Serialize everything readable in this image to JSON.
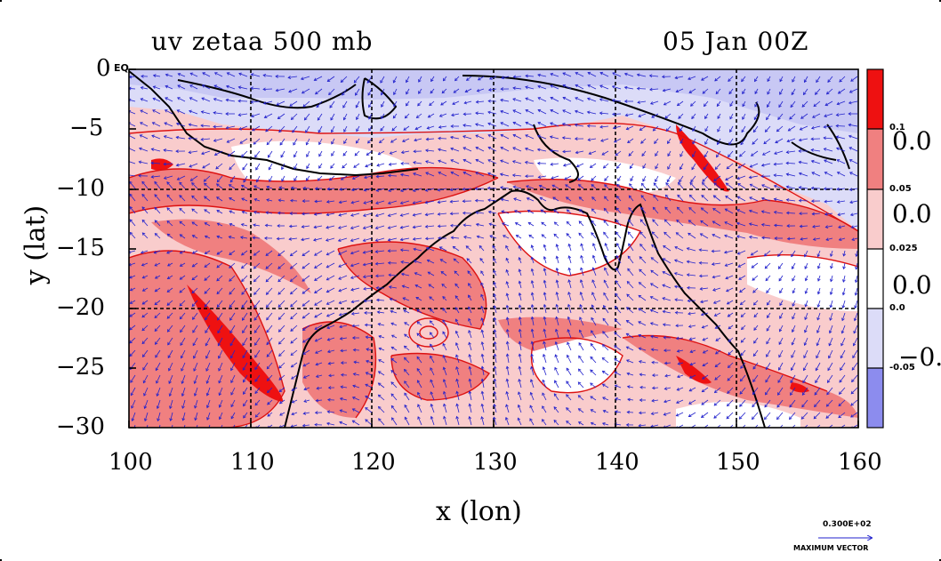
{
  "title_left": "uv zetaa 500 mb",
  "title_right": "05 Jan 00Z",
  "x_axis": {
    "label": "x (lon)",
    "ticks": [
      "100",
      "110",
      "120",
      "130",
      "140",
      "150",
      "160"
    ],
    "range": [
      100,
      160
    ]
  },
  "y_axis": {
    "label": "y (lat)",
    "ticks": [
      "0",
      "−5",
      "−10",
      "−15",
      "−20",
      "−25",
      "−30"
    ],
    "range": [
      -30,
      0
    ],
    "top_tick_suffix": "EQ"
  },
  "colorbar": {
    "levels": [
      "0.1",
      "0.05",
      "0.025",
      "0.0",
      "-0.05"
    ],
    "side_labels": [
      "0.0",
      "0.0",
      "0.0",
      "−0."
    ],
    "colors": [
      "#ee1111",
      "#f08080",
      "#f9cccc",
      "#ffffff",
      "#dcdcf8",
      "#8c8cee"
    ]
  },
  "vector_key": {
    "value": "0.300E+02",
    "label": "MAXIMUM VECTOR"
  },
  "colors": {
    "vector": "#2222cc",
    "coast": "#000000",
    "contour": "#dd1111"
  }
}
